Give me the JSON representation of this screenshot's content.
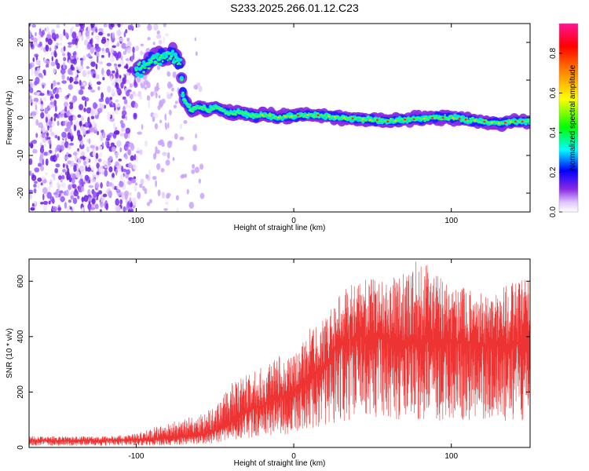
{
  "title": "S233.2025.266.01.12.C23",
  "chart_data": [
    {
      "type": "heatmap",
      "xlabel": "Height of straight line (km)",
      "ylabel": "Frequency (Hz)",
      "xlim": [
        -168,
        150
      ],
      "ylim": [
        -25,
        25
      ],
      "x_ticks": [
        -100,
        0,
        100
      ],
      "y_ticks": [
        -20,
        -10,
        0,
        10,
        20
      ],
      "colorbar": {
        "label": "Normalized spectral amplitude",
        "range": [
          0,
          0.95
        ],
        "ticks": [
          "0.0",
          "0.2",
          "0.4",
          "0.6",
          "0.8"
        ]
      },
      "trace": {
        "x": [
          -100,
          -95,
          -90,
          -85,
          -80,
          -75,
          -72,
          -70,
          -65,
          -60,
          -55,
          -50,
          -45,
          -40,
          -35,
          -30,
          -25,
          -20,
          -15,
          -10,
          -5,
          0,
          10,
          20,
          30,
          40,
          50,
          60,
          70,
          80,
          90,
          100,
          110,
          120,
          130,
          140,
          150
        ],
        "y": [
          12,
          14,
          15,
          16,
          17,
          16,
          14,
          5,
          2,
          3,
          2,
          3,
          2,
          1,
          1.5,
          1,
          0.5,
          0.8,
          0.5,
          0,
          0.3,
          0.5,
          0.8,
          0.5,
          0,
          -0.3,
          -0.5,
          -1,
          -0.5,
          -0.3,
          0,
          0,
          -0.5,
          -1,
          -1.5,
          -1,
          -1
        ]
      }
    },
    {
      "type": "line",
      "xlabel": "Height of straight line (km)",
      "ylabel": "SNR (10 * v/v)",
      "xlim": [
        -168,
        150
      ],
      "ylim": [
        0,
        680
      ],
      "x_ticks": [
        -100,
        0,
        100
      ],
      "y_ticks": [
        0,
        200,
        400,
        600
      ],
      "color": "#ee3333",
      "envelope": {
        "x": [
          -168,
          -120,
          -100,
          -80,
          -60,
          -50,
          -40,
          -30,
          -20,
          -10,
          0,
          10,
          20,
          30,
          40,
          50,
          60,
          80,
          100,
          120,
          140,
          150
        ],
        "mean": [
          25,
          25,
          27,
          32,
          45,
          60,
          90,
          130,
          150,
          180,
          200,
          250,
          300,
          380,
          400,
          400,
          390,
          380,
          380,
          370,
          370,
          380
        ],
        "max": [
          40,
          40,
          50,
          90,
          120,
          150,
          230,
          260,
          290,
          340,
          330,
          430,
          470,
          560,
          600,
          610,
          610,
          680,
          590,
          560,
          600,
          620
        ]
      }
    }
  ]
}
